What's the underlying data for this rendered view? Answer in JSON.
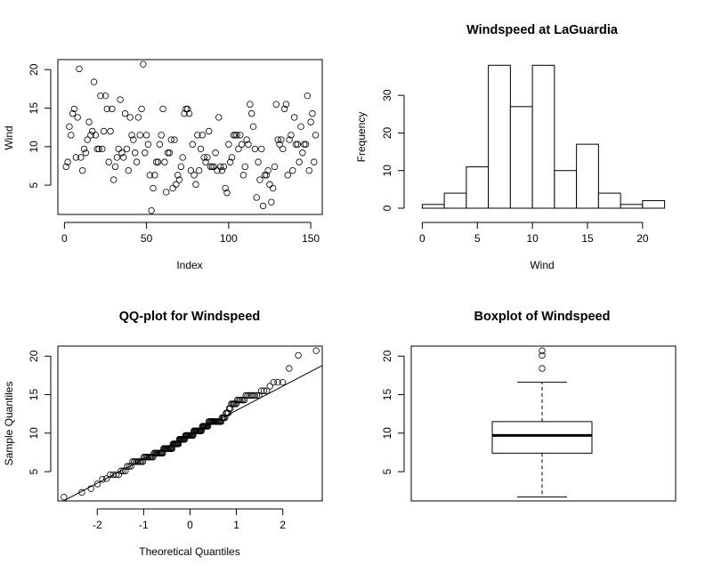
{
  "chart_data": [
    {
      "panel": "index",
      "type": "scatter",
      "title": "",
      "xlabel": "Index",
      "ylabel": "Wind",
      "xlim": [
        -4,
        157
      ],
      "ylim": [
        1.2,
        21.3
      ],
      "xticks": [
        0,
        50,
        100,
        150
      ],
      "yticks": [
        5,
        10,
        15,
        20
      ],
      "grid": false,
      "x": [
        1,
        2,
        3,
        4,
        5,
        6,
        7,
        8,
        9,
        10,
        11,
        12,
        13,
        14,
        15,
        16,
        17,
        18,
        19,
        20,
        21,
        22,
        23,
        24,
        25,
        26,
        27,
        28,
        29,
        30,
        31,
        32,
        33,
        34,
        35,
        36,
        37,
        38,
        39,
        40,
        41,
        42,
        43,
        44,
        45,
        46,
        47,
        48,
        49,
        50,
        51,
        52,
        53,
        54,
        55,
        56,
        57,
        58,
        59,
        60,
        61,
        62,
        63,
        64,
        65,
        66,
        67,
        68,
        69,
        70,
        71,
        72,
        73,
        74,
        75,
        76,
        77,
        78,
        79,
        80,
        81,
        82,
        83,
        84,
        85,
        86,
        87,
        88,
        89,
        90,
        91,
        92,
        93,
        94,
        95,
        96,
        97,
        98,
        99,
        100,
        101,
        102,
        103,
        104,
        105,
        106,
        107,
        108,
        109,
        110,
        111,
        112,
        113,
        114,
        115,
        116,
        117,
        118,
        119,
        120,
        121,
        122,
        123,
        124,
        125,
        126,
        127,
        128,
        129,
        130,
        131,
        132,
        133,
        134,
        135,
        136,
        137,
        138,
        139,
        140,
        141,
        142,
        143,
        144,
        145,
        146,
        147,
        148,
        149,
        150,
        151,
        152,
        153
      ],
      "y": [
        7.4,
        8.0,
        12.6,
        11.5,
        14.3,
        14.9,
        8.6,
        13.8,
        20.1,
        8.6,
        6.9,
        9.7,
        9.2,
        10.9,
        13.2,
        11.5,
        12.0,
        18.4,
        11.5,
        9.7,
        9.7,
        16.6,
        9.7,
        12.0,
        16.6,
        14.9,
        8.0,
        12.0,
        14.9,
        5.7,
        7.4,
        8.6,
        9.7,
        16.1,
        9.2,
        8.6,
        14.3,
        9.7,
        6.9,
        13.8,
        11.5,
        10.9,
        9.2,
        8.0,
        13.8,
        11.5,
        14.9,
        20.7,
        9.2,
        11.5,
        10.3,
        6.3,
        1.7,
        4.6,
        6.3,
        8.0,
        8.0,
        10.3,
        11.5,
        14.9,
        8.0,
        4.1,
        9.2,
        9.2,
        10.9,
        4.6,
        10.9,
        5.1,
        6.3,
        5.7,
        7.4,
        8.6,
        14.3,
        14.9,
        14.9,
        14.3,
        6.9,
        10.3,
        6.3,
        5.1,
        11.5,
        6.9,
        9.7,
        11.5,
        8.6,
        8.0,
        8.6,
        12.0,
        7.4,
        7.4,
        7.4,
        9.2,
        6.9,
        13.8,
        7.4,
        6.9,
        7.4,
        4.6,
        4.0,
        10.3,
        8.0,
        8.6,
        11.5,
        11.5,
        11.5,
        9.7,
        11.5,
        10.3,
        6.3,
        7.4,
        10.9,
        10.3,
        15.5,
        14.3,
        12.6,
        9.7,
        3.4,
        8.0,
        5.7,
        9.7,
        2.3,
        6.3,
        6.3,
        6.9,
        5.1,
        2.8,
        4.6,
        7.4,
        15.5,
        10.9,
        10.3,
        10.9,
        9.7,
        14.9,
        15.5,
        6.3,
        10.9,
        11.5,
        6.9,
        13.8,
        10.3,
        10.3,
        8.0,
        12.6,
        9.2,
        10.3,
        10.3,
        16.6,
        6.9,
        13.2,
        14.3,
        8.0,
        11.5
      ]
    },
    {
      "panel": "histogram",
      "type": "bar",
      "title": "Windspeed at LaGuardia",
      "xlabel": "Wind",
      "ylabel": "Frequency",
      "bin_edges": [
        0,
        2,
        4,
        6,
        8,
        10,
        12,
        14,
        16,
        18,
        20,
        22
      ],
      "counts": [
        1,
        4,
        11,
        38,
        27,
        38,
        10,
        17,
        4,
        1,
        2
      ],
      "xlim": [
        -1,
        23
      ],
      "ylim": [
        0,
        39.5
      ],
      "xticks": [
        0,
        5,
        10,
        15,
        20
      ],
      "yticks": [
        0,
        10,
        20,
        30
      ],
      "grid": false
    },
    {
      "panel": "qq",
      "type": "scatter",
      "title": "QQ-plot for Windspeed",
      "xlabel": "Theoretical Quantiles",
      "ylabel": "Sample Quantiles",
      "xlim": [
        -2.85,
        2.85
      ],
      "ylim": [
        1.2,
        21.3
      ],
      "xticks": [
        -2,
        -1,
        0,
        1,
        2
      ],
      "yticks": [
        5,
        10,
        15,
        20
      ],
      "reference_line": {
        "intercept": 9.8,
        "slope": 3.15
      },
      "grid": false
    },
    {
      "panel": "boxplot",
      "type": "boxplot",
      "title": "Boxplot of Windspeed",
      "ylim": [
        1.2,
        21.3
      ],
      "yticks": [
        5,
        10,
        15,
        20
      ],
      "whisker_low": 1.7,
      "q1": 7.4,
      "median": 9.7,
      "q3": 11.5,
      "whisker_high": 16.6,
      "outliers": [
        18.4,
        20.1,
        20.7
      ],
      "grid": false
    }
  ]
}
